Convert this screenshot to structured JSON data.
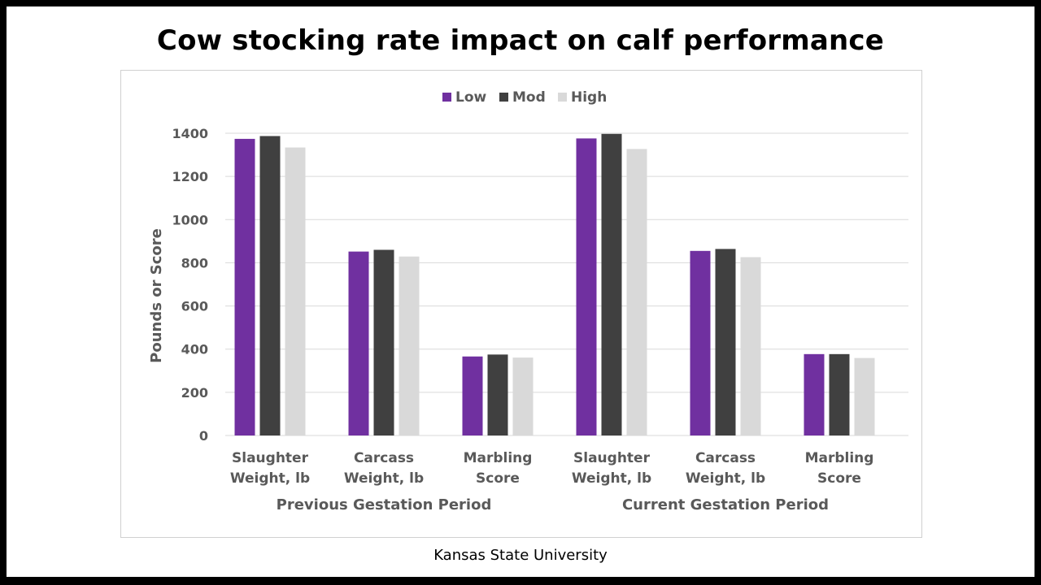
{
  "slide": {
    "title": "Cow stocking rate impact on calf performance",
    "source": "Kansas State University"
  },
  "colors": {
    "low": "#7030a0",
    "mod": "#404040",
    "high": "#d9d9d9",
    "grid": "#d9d9d9",
    "axis_text": "#595959"
  },
  "chart_data": {
    "type": "bar",
    "title": "",
    "ylabel": "Pounds or Score",
    "xlabel": "",
    "ylim": [
      0,
      1400
    ],
    "yticks": [
      0,
      200,
      400,
      600,
      800,
      1000,
      1200,
      1400
    ],
    "grid": true,
    "legend_position": "top-center",
    "groups": [
      {
        "name": "Previous Gestation Period",
        "categories": [
          [
            "Slaughter",
            "Weight, lb"
          ],
          [
            "Carcass",
            "Weight, lb"
          ],
          [
            "Marbling",
            "Score"
          ]
        ]
      },
      {
        "name": "Current Gestation Period",
        "categories": [
          [
            "Slaughter",
            "Weight, lb"
          ],
          [
            "Carcass",
            "Weight, lb"
          ],
          [
            "Marbling",
            "Score"
          ]
        ]
      }
    ],
    "series": [
      {
        "name": "Low",
        "color_key": "low",
        "values": [
          1374,
          852,
          366,
          1376,
          855,
          377
        ]
      },
      {
        "name": "Mod",
        "color_key": "mod",
        "values": [
          1387,
          860,
          375,
          1397,
          864,
          377
        ]
      },
      {
        "name": "High",
        "color_key": "high",
        "values": [
          1334,
          829,
          361,
          1327,
          826,
          359
        ]
      }
    ]
  }
}
